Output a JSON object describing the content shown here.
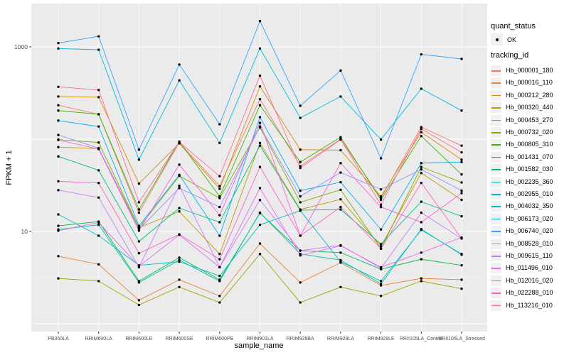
{
  "chart_data": {
    "type": "line",
    "title": "",
    "xlabel": "sample_name",
    "ylabel": "FPKM + 1",
    "y_scale": "log10",
    "y_ticks": [
      10,
      1000
    ],
    "y_tick_labels": [
      "10",
      "1000"
    ],
    "ylim": [
      0.85,
      2700
    ],
    "grid": true,
    "panel_bg": "#EBEBEB",
    "grid_color": "#FFFFFF",
    "point_color": "#000000",
    "legend_position": "right",
    "x_categories": [
      "PB350LA",
      "RRIM600LA",
      "RRIM600LE",
      "RRIM600SE",
      "RRIM600PE",
      "RRIM901LA",
      "RRIM928BA",
      "RRIM928LA",
      "RRIM928LE",
      "RRII105LA_Control",
      "RRII105LA_Stressed"
    ],
    "series": [
      {
        "name": "Hb_000001_180",
        "color": "#F8766D",
        "values": [
          233,
          186,
          16,
          92,
          31,
          271,
          51,
          100,
          23,
          135,
          85
        ]
      },
      {
        "name": "Hb_000016_110",
        "color": "#EA8331",
        "values": [
          5.4,
          4.4,
          1.8,
          3.0,
          2.0,
          7.4,
          2.8,
          4.6,
          2.6,
          3.1,
          3.0
        ]
      },
      {
        "name": "Hb_000212_280",
        "color": "#D89000",
        "values": [
          290,
          285,
          33,
          90,
          29,
          373,
          77,
          76,
          24,
          119,
          60
        ]
      },
      {
        "name": "Hb_000320_440",
        "color": "#C09B00",
        "values": [
          82,
          79,
          11,
          16.5,
          5.7,
          91,
          17.3,
          22.3,
          6.9,
          43,
          22
        ]
      },
      {
        "name": "Hb_000453_270",
        "color": "#A3A500",
        "values": [
          3.1,
          2.9,
          1.6,
          2.5,
          1.7,
          5.7,
          1.7,
          2.5,
          2.0,
          2.9,
          2.4
        ]
      },
      {
        "name": "Hb_000732_020",
        "color": "#7CAE00",
        "values": [
          99,
          92,
          11,
          40,
          23,
          134,
          20.7,
          28.3,
          6.5,
          50,
          34
        ]
      },
      {
        "name": "Hb_000805_310",
        "color": "#39B600",
        "values": [
          204,
          186,
          17.3,
          94,
          24,
          233,
          56.5,
          105,
          22,
          108,
          41.5
        ]
      },
      {
        "name": "Hb_001431_070",
        "color": "#00BB4E",
        "values": [
          11.5,
          12.8,
          2.9,
          5.2,
          3.0,
          15.8,
          6.2,
          5.9,
          3.9,
          5.0,
          4.3
        ]
      },
      {
        "name": "Hb_001582_030",
        "color": "#00BF7D",
        "values": [
          65,
          46,
          7.8,
          17.9,
          12.6,
          85,
          17,
          17.3,
          7.3,
          21,
          14.6
        ]
      },
      {
        "name": "Hb_002235_360",
        "color": "#00C1A3",
        "values": [
          10.5,
          11.8,
          2.8,
          4.9,
          2.9,
          16,
          5.7,
          4.9,
          2.7,
          10.6,
          5.6
        ]
      },
      {
        "name": "Hb_002955_010",
        "color": "#00BFC4",
        "values": [
          15.3,
          9.0,
          4.3,
          4.7,
          3.3,
          11.8,
          16.8,
          4.7,
          2.9,
          10.4,
          5.7
        ]
      },
      {
        "name": "Hb_004032_350",
        "color": "#00BAE0",
        "values": [
          960,
          930,
          60,
          433,
          91,
          960,
          170,
          290,
          99,
          352,
          204
        ]
      },
      {
        "name": "Hb_006173_020",
        "color": "#00B0F6",
        "values": [
          159,
          137,
          11.5,
          41,
          9.0,
          173,
          27.7,
          34.2,
          10.5,
          55,
          56.5
        ]
      },
      {
        "name": "Hb_006740_020",
        "color": "#35A2FF",
        "values": [
          1100,
          1300,
          77,
          643,
          145,
          1900,
          230,
          554,
          62,
          830,
          740
        ]
      },
      {
        "name": "Hb_008528_010",
        "color": "#9590FF",
        "values": [
          111,
          80,
          10.5,
          29.5,
          18.4,
          137,
          24,
          43.4,
          28.6,
          47,
          27.7
        ]
      },
      {
        "name": "Hb_009615_110",
        "color": "#C77CFF",
        "values": [
          28,
          23.3,
          4.1,
          31.3,
          4.1,
          21.9,
          6.2,
          7.1,
          4.0,
          16,
          8.4
        ]
      },
      {
        "name": "Hb_011496_010",
        "color": "#E76BF3",
        "values": [
          10.2,
          12.5,
          4.2,
          9.2,
          4.1,
          29.5,
          5.5,
          7.0,
          4.1,
          5.9,
          8.6
        ]
      },
      {
        "name": "Hb_012016_020",
        "color": "#FA62DB",
        "values": [
          98,
          78,
          10.2,
          53,
          15,
          150,
          9.0,
          55,
          18.4,
          12.6,
          26
        ]
      },
      {
        "name": "Hb_022288_010",
        "color": "#FF61C3",
        "values": [
          35,
          33.5,
          5.8,
          9.3,
          5.0,
          50,
          9.0,
          18.4,
          6.5,
          33.6,
          8.4
        ]
      },
      {
        "name": "Hb_113216_010",
        "color": "#FF6A98",
        "values": [
          369,
          341,
          20.7,
          93,
          39.7,
          487,
          48.7,
          99,
          19.5,
          129,
          72
        ]
      }
    ]
  },
  "legend": {
    "quant_status_title": "quant_status",
    "quant_status_ok": "OK",
    "tracking_id_title": "tracking_id"
  }
}
